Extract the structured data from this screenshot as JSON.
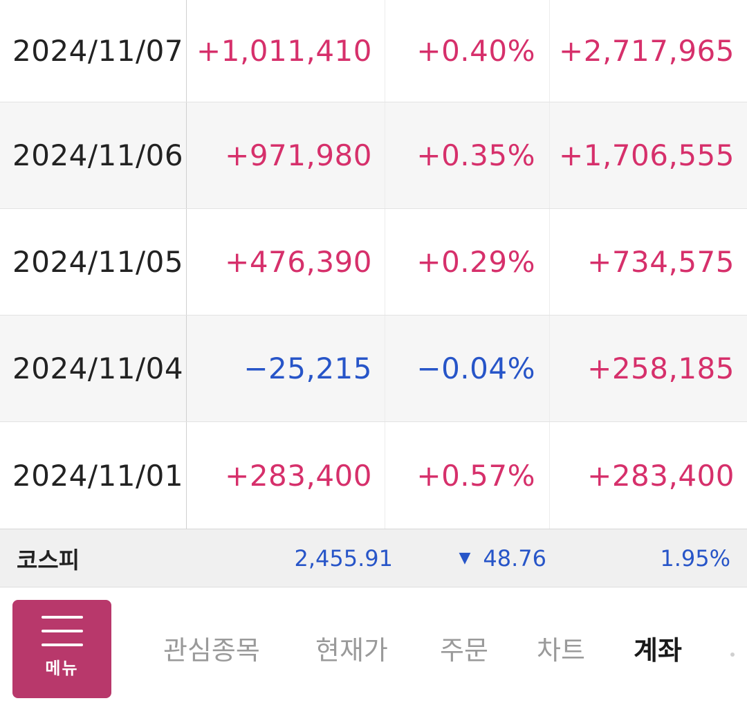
{
  "rows": [
    {
      "date": "2024/11/07",
      "amount": "+1,011,410",
      "rate": "+0.40%",
      "cumulative": "+2,717,965"
    },
    {
      "date": "2024/11/06",
      "amount": "+971,980",
      "rate": "+0.35%",
      "cumulative": "+1,706,555"
    },
    {
      "date": "2024/11/05",
      "amount": "+476,390",
      "rate": "+0.29%",
      "cumulative": "+734,575"
    },
    {
      "date": "2024/11/04",
      "amount": "−25,215",
      "rate": "−0.04%",
      "cumulative": "+258,185"
    },
    {
      "date": "2024/11/01",
      "amount": "+283,400",
      "rate": "+0.57%",
      "cumulative": "+283,400"
    }
  ],
  "index": {
    "name": "코스피",
    "value": "2,455.91",
    "change": "48.76",
    "rate": "1.95%"
  },
  "nav": {
    "menu_label": "메뉴",
    "tabs": [
      "관심종목",
      "현재가",
      "주문",
      "차트",
      "계좌"
    ],
    "active_tab": "계좌"
  },
  "colors": {
    "up": "#d6306b",
    "down": "#2755c8",
    "menu_bg": "#b8386b"
  }
}
